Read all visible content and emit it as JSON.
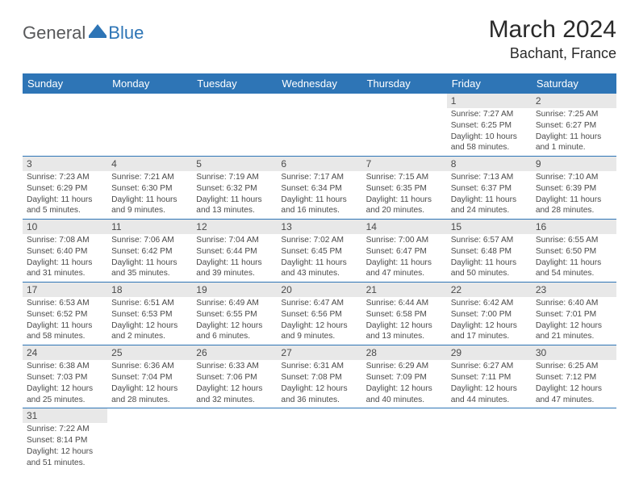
{
  "logo": {
    "general": "General",
    "blue": "Blue"
  },
  "title": "March 2024",
  "location": "Bachant, France",
  "colors": {
    "primary": "#2e75b6",
    "header_text": "#ffffff",
    "daynum_bg": "#e8e8e8",
    "text": "#4a4a4a",
    "logo_gray": "#58595b"
  },
  "weekdays": [
    "Sunday",
    "Monday",
    "Tuesday",
    "Wednesday",
    "Thursday",
    "Friday",
    "Saturday"
  ],
  "weeks": [
    [
      {
        "n": "",
        "sr": "",
        "ss": "",
        "dl": "",
        "empty": true
      },
      {
        "n": "",
        "sr": "",
        "ss": "",
        "dl": "",
        "empty": true
      },
      {
        "n": "",
        "sr": "",
        "ss": "",
        "dl": "",
        "empty": true
      },
      {
        "n": "",
        "sr": "",
        "ss": "",
        "dl": "",
        "empty": true
      },
      {
        "n": "",
        "sr": "",
        "ss": "",
        "dl": "",
        "empty": true
      },
      {
        "n": "1",
        "sr": "Sunrise: 7:27 AM",
        "ss": "Sunset: 6:25 PM",
        "dl": "Daylight: 10 hours and 58 minutes."
      },
      {
        "n": "2",
        "sr": "Sunrise: 7:25 AM",
        "ss": "Sunset: 6:27 PM",
        "dl": "Daylight: 11 hours and 1 minute."
      }
    ],
    [
      {
        "n": "3",
        "sr": "Sunrise: 7:23 AM",
        "ss": "Sunset: 6:29 PM",
        "dl": "Daylight: 11 hours and 5 minutes."
      },
      {
        "n": "4",
        "sr": "Sunrise: 7:21 AM",
        "ss": "Sunset: 6:30 PM",
        "dl": "Daylight: 11 hours and 9 minutes."
      },
      {
        "n": "5",
        "sr": "Sunrise: 7:19 AM",
        "ss": "Sunset: 6:32 PM",
        "dl": "Daylight: 11 hours and 13 minutes."
      },
      {
        "n": "6",
        "sr": "Sunrise: 7:17 AM",
        "ss": "Sunset: 6:34 PM",
        "dl": "Daylight: 11 hours and 16 minutes."
      },
      {
        "n": "7",
        "sr": "Sunrise: 7:15 AM",
        "ss": "Sunset: 6:35 PM",
        "dl": "Daylight: 11 hours and 20 minutes."
      },
      {
        "n": "8",
        "sr": "Sunrise: 7:13 AM",
        "ss": "Sunset: 6:37 PM",
        "dl": "Daylight: 11 hours and 24 minutes."
      },
      {
        "n": "9",
        "sr": "Sunrise: 7:10 AM",
        "ss": "Sunset: 6:39 PM",
        "dl": "Daylight: 11 hours and 28 minutes."
      }
    ],
    [
      {
        "n": "10",
        "sr": "Sunrise: 7:08 AM",
        "ss": "Sunset: 6:40 PM",
        "dl": "Daylight: 11 hours and 31 minutes."
      },
      {
        "n": "11",
        "sr": "Sunrise: 7:06 AM",
        "ss": "Sunset: 6:42 PM",
        "dl": "Daylight: 11 hours and 35 minutes."
      },
      {
        "n": "12",
        "sr": "Sunrise: 7:04 AM",
        "ss": "Sunset: 6:44 PM",
        "dl": "Daylight: 11 hours and 39 minutes."
      },
      {
        "n": "13",
        "sr": "Sunrise: 7:02 AM",
        "ss": "Sunset: 6:45 PM",
        "dl": "Daylight: 11 hours and 43 minutes."
      },
      {
        "n": "14",
        "sr": "Sunrise: 7:00 AM",
        "ss": "Sunset: 6:47 PM",
        "dl": "Daylight: 11 hours and 47 minutes."
      },
      {
        "n": "15",
        "sr": "Sunrise: 6:57 AM",
        "ss": "Sunset: 6:48 PM",
        "dl": "Daylight: 11 hours and 50 minutes."
      },
      {
        "n": "16",
        "sr": "Sunrise: 6:55 AM",
        "ss": "Sunset: 6:50 PM",
        "dl": "Daylight: 11 hours and 54 minutes."
      }
    ],
    [
      {
        "n": "17",
        "sr": "Sunrise: 6:53 AM",
        "ss": "Sunset: 6:52 PM",
        "dl": "Daylight: 11 hours and 58 minutes."
      },
      {
        "n": "18",
        "sr": "Sunrise: 6:51 AM",
        "ss": "Sunset: 6:53 PM",
        "dl": "Daylight: 12 hours and 2 minutes."
      },
      {
        "n": "19",
        "sr": "Sunrise: 6:49 AM",
        "ss": "Sunset: 6:55 PM",
        "dl": "Daylight: 12 hours and 6 minutes."
      },
      {
        "n": "20",
        "sr": "Sunrise: 6:47 AM",
        "ss": "Sunset: 6:56 PM",
        "dl": "Daylight: 12 hours and 9 minutes."
      },
      {
        "n": "21",
        "sr": "Sunrise: 6:44 AM",
        "ss": "Sunset: 6:58 PM",
        "dl": "Daylight: 12 hours and 13 minutes."
      },
      {
        "n": "22",
        "sr": "Sunrise: 6:42 AM",
        "ss": "Sunset: 7:00 PM",
        "dl": "Daylight: 12 hours and 17 minutes."
      },
      {
        "n": "23",
        "sr": "Sunrise: 6:40 AM",
        "ss": "Sunset: 7:01 PM",
        "dl": "Daylight: 12 hours and 21 minutes."
      }
    ],
    [
      {
        "n": "24",
        "sr": "Sunrise: 6:38 AM",
        "ss": "Sunset: 7:03 PM",
        "dl": "Daylight: 12 hours and 25 minutes."
      },
      {
        "n": "25",
        "sr": "Sunrise: 6:36 AM",
        "ss": "Sunset: 7:04 PM",
        "dl": "Daylight: 12 hours and 28 minutes."
      },
      {
        "n": "26",
        "sr": "Sunrise: 6:33 AM",
        "ss": "Sunset: 7:06 PM",
        "dl": "Daylight: 12 hours and 32 minutes."
      },
      {
        "n": "27",
        "sr": "Sunrise: 6:31 AM",
        "ss": "Sunset: 7:08 PM",
        "dl": "Daylight: 12 hours and 36 minutes."
      },
      {
        "n": "28",
        "sr": "Sunrise: 6:29 AM",
        "ss": "Sunset: 7:09 PM",
        "dl": "Daylight: 12 hours and 40 minutes."
      },
      {
        "n": "29",
        "sr": "Sunrise: 6:27 AM",
        "ss": "Sunset: 7:11 PM",
        "dl": "Daylight: 12 hours and 44 minutes."
      },
      {
        "n": "30",
        "sr": "Sunrise: 6:25 AM",
        "ss": "Sunset: 7:12 PM",
        "dl": "Daylight: 12 hours and 47 minutes."
      }
    ],
    [
      {
        "n": "31",
        "sr": "Sunrise: 7:22 AM",
        "ss": "Sunset: 8:14 PM",
        "dl": "Daylight: 12 hours and 51 minutes."
      },
      {
        "n": "",
        "sr": "",
        "ss": "",
        "dl": "",
        "empty": true
      },
      {
        "n": "",
        "sr": "",
        "ss": "",
        "dl": "",
        "empty": true
      },
      {
        "n": "",
        "sr": "",
        "ss": "",
        "dl": "",
        "empty": true
      },
      {
        "n": "",
        "sr": "",
        "ss": "",
        "dl": "",
        "empty": true
      },
      {
        "n": "",
        "sr": "",
        "ss": "",
        "dl": "",
        "empty": true
      },
      {
        "n": "",
        "sr": "",
        "ss": "",
        "dl": "",
        "empty": true
      }
    ]
  ]
}
